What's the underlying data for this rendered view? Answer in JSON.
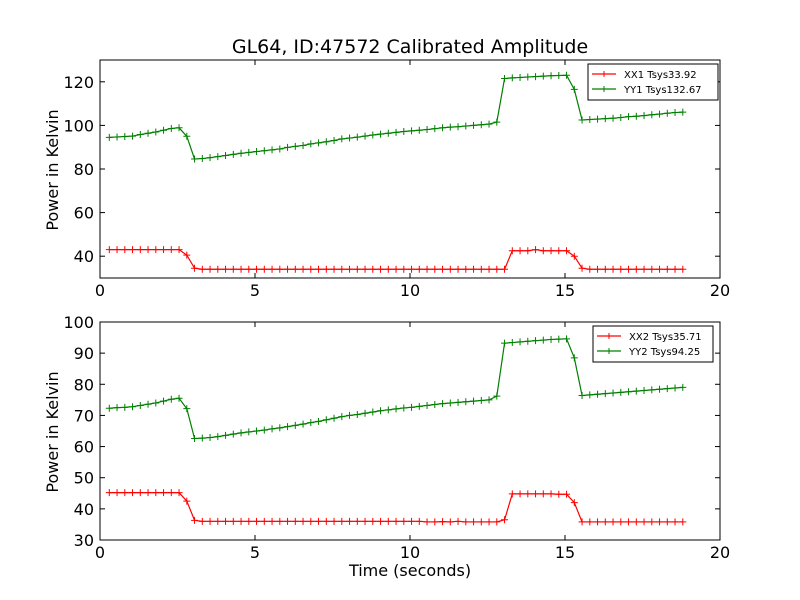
{
  "chart_data": [
    {
      "type": "line",
      "title": "GL64, ID:47572 Calibrated Amplitude",
      "xlabel": "",
      "ylabel": "Power in Kelvin",
      "xlim": [
        0,
        20
      ],
      "ylim": [
        30,
        130
      ],
      "xticks": [
        0,
        5,
        10,
        15,
        20
      ],
      "yticks": [
        40,
        60,
        80,
        100,
        120
      ],
      "xtick_labels": [
        "0",
        "5",
        "10",
        "15",
        "20"
      ],
      "ytick_labels": [
        "40",
        "60",
        "80",
        "100",
        "120"
      ],
      "legend_position": "top-right",
      "grid": false,
      "x": [
        0.3,
        0.55,
        0.8,
        1.05,
        1.3,
        1.55,
        1.8,
        2.05,
        2.3,
        2.55,
        2.8,
        3.05,
        3.3,
        3.55,
        3.8,
        4.05,
        4.3,
        4.55,
        4.8,
        5.05,
        5.3,
        5.55,
        5.8,
        6.05,
        6.3,
        6.55,
        6.8,
        7.05,
        7.3,
        7.55,
        7.8,
        8.05,
        8.3,
        8.55,
        8.8,
        9.05,
        9.3,
        9.55,
        9.8,
        10.05,
        10.3,
        10.55,
        10.8,
        11.05,
        11.3,
        11.55,
        11.8,
        12.05,
        12.3,
        12.55,
        12.8,
        13.05,
        13.3,
        13.55,
        13.8,
        14.05,
        14.3,
        14.55,
        14.8,
        15.05,
        15.3,
        15.55,
        15.8,
        16.05,
        16.3,
        16.55,
        16.8,
        17.05,
        17.3,
        17.55,
        17.8,
        18.05,
        18.3,
        18.55,
        18.8
      ],
      "series": [
        {
          "name": "XX1 Tsys33.92",
          "color": "#ff0000",
          "values": [
            43,
            43,
            43,
            43,
            43,
            43,
            43,
            43,
            43,
            43,
            40.5,
            34.5,
            34,
            34,
            34,
            34,
            34,
            34,
            34,
            34,
            34,
            34,
            34,
            34,
            34,
            34,
            34,
            34,
            34,
            34,
            34,
            34,
            34,
            34,
            34,
            34,
            34,
            34,
            34,
            34,
            34,
            34,
            34,
            34,
            34,
            34,
            34,
            34,
            34,
            34,
            34,
            34,
            42.5,
            42.5,
            42.5,
            43,
            42.5,
            42.5,
            42.5,
            42.5,
            40,
            34.5,
            34,
            34,
            34,
            34,
            34,
            34,
            34,
            34,
            34,
            34,
            34,
            34,
            34
          ]
        },
        {
          "name": "YY1 Tsys132.67",
          "color": "#008000",
          "values": [
            94.5,
            94.7,
            94.9,
            95.1,
            95.8,
            96.4,
            97,
            97.8,
            98.6,
            98.9,
            95,
            84.6,
            84.8,
            85.2,
            85.7,
            86.2,
            86.7,
            87.2,
            87.6,
            88,
            88.4,
            88.8,
            89.2,
            89.9,
            90.4,
            90.8,
            91.5,
            92,
            92.5,
            93.1,
            93.8,
            94.2,
            94.6,
            95.1,
            95.6,
            96,
            96.4,
            96.8,
            97.2,
            97.5,
            97.8,
            98.1,
            98.5,
            98.9,
            99.2,
            99.4,
            99.7,
            100,
            100.3,
            100.6,
            101.5,
            121.5,
            121.8,
            122,
            122.2,
            122.4,
            122.6,
            122.8,
            122.9,
            123,
            116.5,
            102.5,
            102.7,
            102.9,
            103.1,
            103.3,
            103.6,
            104,
            104.2,
            104.5,
            104.9,
            105.2,
            105.6,
            105.9,
            106.1
          ]
        }
      ]
    },
    {
      "type": "line",
      "title": "",
      "xlabel": "Time (seconds)",
      "ylabel": "Power in Kelvin",
      "xlim": [
        0,
        20
      ],
      "ylim": [
        30,
        100
      ],
      "xticks": [
        0,
        5,
        10,
        15,
        20
      ],
      "yticks": [
        30,
        40,
        50,
        60,
        70,
        80,
        90,
        100
      ],
      "xtick_labels": [
        "0",
        "5",
        "10",
        "15",
        "20"
      ],
      "ytick_labels": [
        "30",
        "40",
        "50",
        "60",
        "70",
        "80",
        "90",
        "100"
      ],
      "legend_position": "top-right",
      "grid": false,
      "x": [
        0.3,
        0.55,
        0.8,
        1.05,
        1.3,
        1.55,
        1.8,
        2.05,
        2.3,
        2.55,
        2.8,
        3.05,
        3.3,
        3.55,
        3.8,
        4.05,
        4.3,
        4.55,
        4.8,
        5.05,
        5.3,
        5.55,
        5.8,
        6.05,
        6.3,
        6.55,
        6.8,
        7.05,
        7.3,
        7.55,
        7.8,
        8.05,
        8.3,
        8.55,
        8.8,
        9.05,
        9.3,
        9.55,
        9.8,
        10.05,
        10.3,
        10.55,
        10.8,
        11.05,
        11.3,
        11.55,
        11.8,
        12.05,
        12.3,
        12.55,
        12.8,
        13.05,
        13.3,
        13.55,
        13.8,
        14.05,
        14.3,
        14.55,
        14.8,
        15.05,
        15.3,
        15.55,
        15.8,
        16.05,
        16.3,
        16.55,
        16.8,
        17.05,
        17.3,
        17.55,
        17.8,
        18.05,
        18.3,
        18.55,
        18.8
      ],
      "series": [
        {
          "name": "XX2 Tsys35.71",
          "color": "#ff0000",
          "values": [
            45.2,
            45.2,
            45.2,
            45.2,
            45.2,
            45.2,
            45.2,
            45.2,
            45.2,
            45.2,
            42.5,
            36.3,
            36,
            36,
            36,
            36,
            36,
            36,
            36,
            36,
            36,
            36,
            36,
            36,
            36,
            36,
            36,
            36,
            36,
            36,
            36,
            36,
            36,
            36,
            36,
            36,
            36,
            36,
            36,
            36,
            36,
            35.8,
            35.8,
            35.9,
            35.8,
            36,
            35.8,
            35.8,
            35.8,
            35.8,
            35.8,
            36.5,
            44.8,
            44.8,
            44.8,
            44.8,
            44.8,
            44.8,
            44.7,
            44.7,
            42,
            35.8,
            35.8,
            35.8,
            35.8,
            35.8,
            35.8,
            35.8,
            35.8,
            35.8,
            35.8,
            35.8,
            35.8,
            35.8,
            35.8
          ]
        },
        {
          "name": "YY2 Tsys94.25",
          "color": "#008000",
          "values": [
            72.3,
            72.5,
            72.6,
            72.8,
            73.2,
            73.6,
            74,
            74.6,
            75.2,
            75.5,
            72.2,
            62.6,
            62.7,
            62.9,
            63.2,
            63.6,
            64,
            64.4,
            64.7,
            65,
            65.3,
            65.7,
            66,
            66.4,
            66.8,
            67.2,
            67.7,
            68.1,
            68.6,
            69.1,
            69.6,
            70,
            70.3,
            70.7,
            71.1,
            71.5,
            71.8,
            72.1,
            72.4,
            72.6,
            72.9,
            73.2,
            73.5,
            73.8,
            74,
            74.2,
            74.4,
            74.6,
            74.8,
            75,
            76.2,
            93.2,
            93.4,
            93.6,
            93.8,
            94,
            94.2,
            94.4,
            94.5,
            94.6,
            88.5,
            76.4,
            76.6,
            76.8,
            77,
            77.2,
            77.4,
            77.6,
            77.8,
            78,
            78.2,
            78.4,
            78.6,
            78.8,
            79
          ]
        }
      ]
    }
  ]
}
